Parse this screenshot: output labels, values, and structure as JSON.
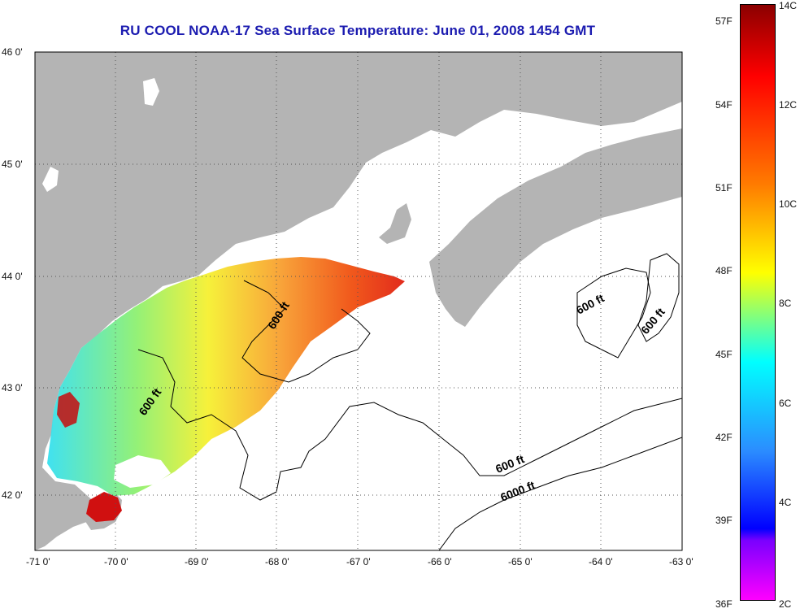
{
  "title": "RU COOL  NOAA-17  Sea Surface Temperature:  June 01, 2008 1454 GMT",
  "lat_ticks": [
    "46 0'",
    "45 0'",
    "44 0'",
    "43 0'",
    "42 0'"
  ],
  "lon_ticks": [
    "-71 0'",
    "-70 0'",
    "-69 0'",
    "-68 0'",
    "-67 0'",
    "-66 0'",
    "-65 0'",
    "-64 0'",
    "-63 0'"
  ],
  "contour_labels": [
    "600 ft",
    "600 ft",
    "600 ft",
    "600 ft",
    "6000 ft",
    "600 ft"
  ],
  "colorbar": {
    "fahrenheit": [
      "57F",
      "54F",
      "51F",
      "48F",
      "45F",
      "42F",
      "39F",
      "36F"
    ],
    "celsius": [
      "14C",
      "12C",
      "10C",
      "8C",
      "6C",
      "4C",
      "2C"
    ],
    "range_c": [
      2,
      14
    ]
  },
  "colors": {
    "land": "#b4b4b4",
    "title": "#1b1bb0",
    "water": "#ffffff"
  }
}
